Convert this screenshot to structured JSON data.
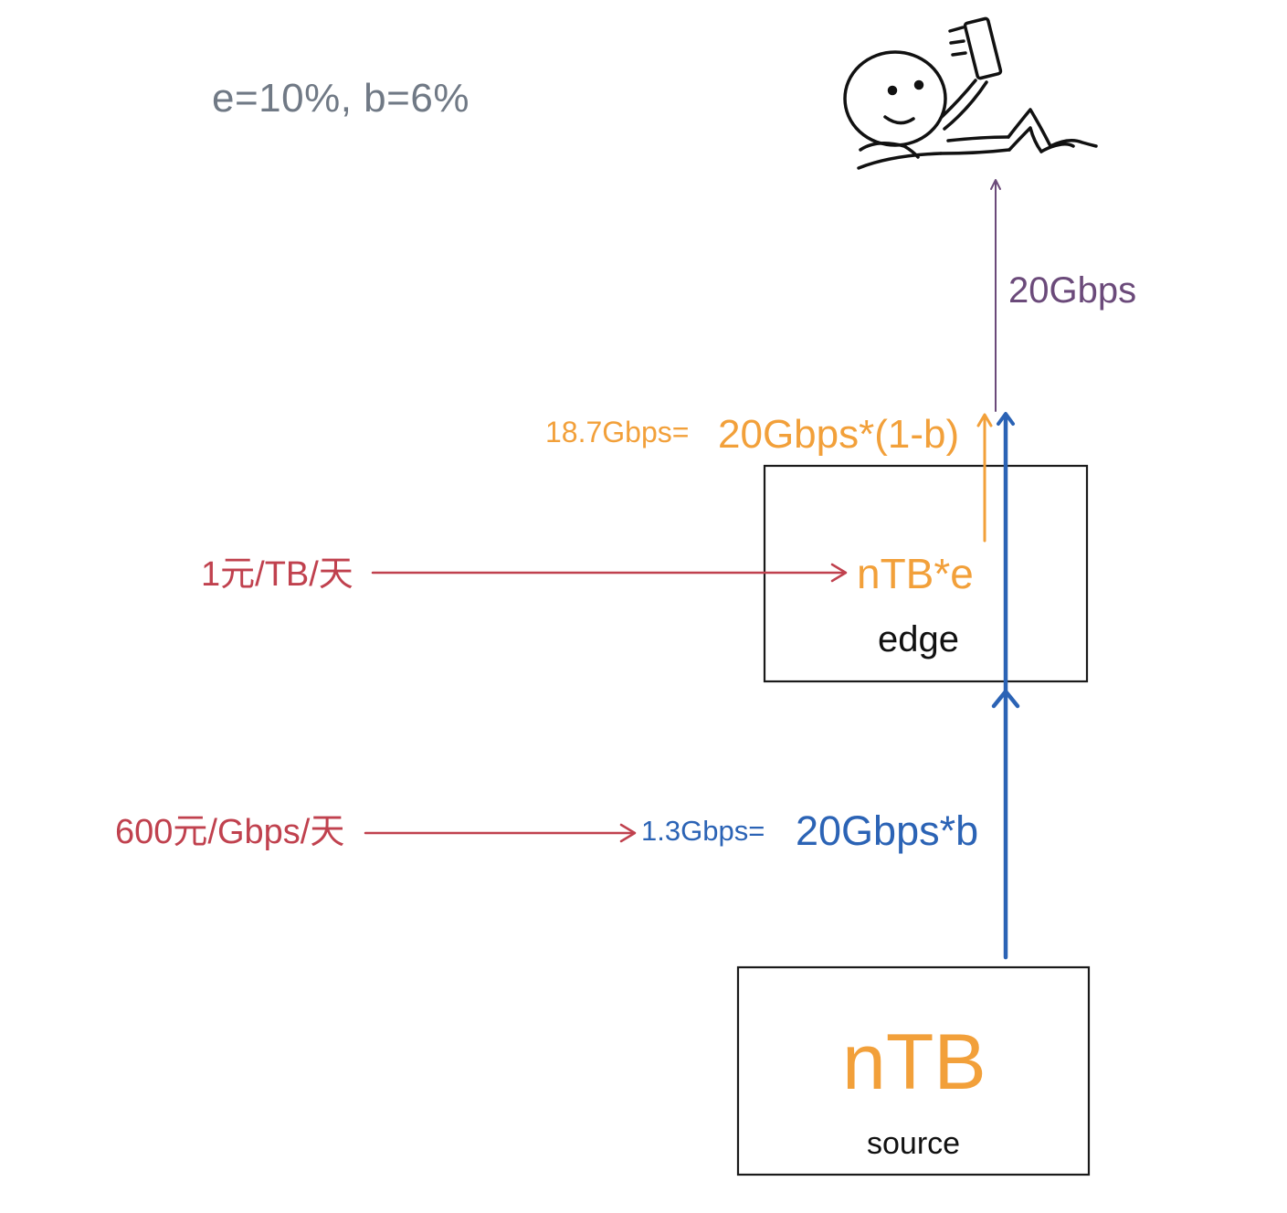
{
  "colors": {
    "params": "#707985",
    "purple": "#6b4a7a",
    "orange": "#f2a03a",
    "red": "#c0414e",
    "blue": "#2b63b5",
    "box": "#1a1a1a"
  },
  "params_text": "e=10%, b=6%",
  "user": {
    "bandwidth": "20Gbps",
    "icon": "person-lying-with-phone"
  },
  "edge": {
    "label": "edge",
    "storage": "nTB*e",
    "output_small": "18.7Gbps=",
    "output_big": "20Gbps*(1-b)"
  },
  "source": {
    "label": "source",
    "storage": "nTB"
  },
  "origin_traffic": {
    "small": "1.3Gbps=",
    "big": "20Gbps*b"
  },
  "prices": {
    "storage": "1元/TB/天",
    "bandwidth": "600元/Gbps/天"
  }
}
